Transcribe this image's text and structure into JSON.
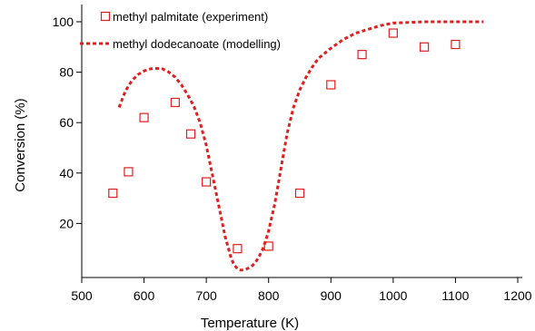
{
  "chart_data": {
    "type": "scatter",
    "xlabel": "Temperature (K)",
    "ylabel": "Conversion (%)",
    "xlim": [
      500,
      1200
    ],
    "ylim": [
      0,
      100
    ],
    "xticks": [
      500,
      600,
      700,
      800,
      900,
      1000,
      1100,
      1200
    ],
    "yticks": [
      20,
      40,
      60,
      80,
      100
    ],
    "grid": false,
    "legend_position": "top-left",
    "series": [
      {
        "name": "methyl palmitate (experiment)",
        "kind": "markers",
        "marker": "open-square",
        "color": "#e02020",
        "x": [
          550,
          575,
          600,
          650,
          675,
          700,
          750,
          800,
          850,
          900,
          950,
          1000,
          1050,
          1100
        ],
        "y": [
          32,
          40.5,
          62,
          68,
          55.5,
          36.5,
          10,
          11,
          32,
          75,
          87,
          95.5,
          90,
          91
        ]
      },
      {
        "name": "methyl dodecanoate (modelling)",
        "kind": "line",
        "style": "dotted",
        "color": "#e02020",
        "x": [
          560,
          570,
          580,
          590,
          600,
          610,
          620,
          630,
          640,
          650,
          660,
          670,
          680,
          690,
          700,
          710,
          720,
          730,
          740,
          745,
          750,
          755,
          760,
          765,
          770,
          775,
          780,
          785,
          790,
          795,
          800,
          810,
          820,
          830,
          840,
          850,
          860,
          870,
          880,
          900,
          920,
          940,
          960,
          980,
          1000,
          1050,
          1100,
          1145
        ],
        "y": [
          66,
          72.5,
          76.5,
          79,
          80.5,
          81.3,
          81.5,
          81.3,
          80,
          78,
          75,
          71,
          66.5,
          60,
          51,
          39,
          27,
          15,
          6,
          3.5,
          2,
          1.5,
          1.5,
          2,
          2.5,
          3.5,
          5,
          7,
          9.5,
          13,
          17,
          28,
          42,
          56,
          66,
          73,
          78,
          82,
          85.5,
          89.5,
          93,
          95.5,
          97,
          98.5,
          99.5,
          100,
          100,
          100
        ]
      }
    ]
  }
}
